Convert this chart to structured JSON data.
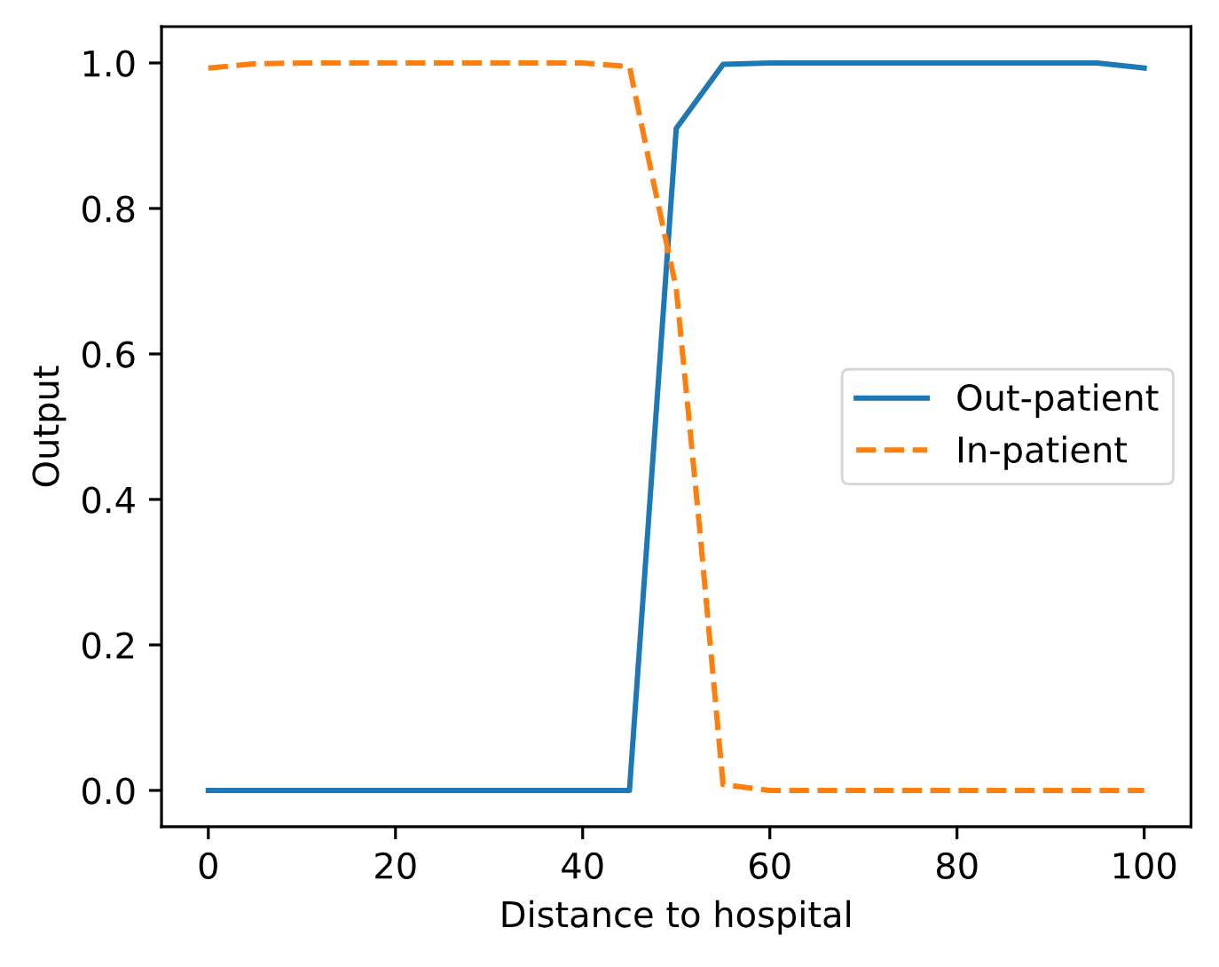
{
  "chart_data": {
    "type": "line",
    "xlabel": "Distance to hospital",
    "ylabel": "Output",
    "series": [
      {
        "name": "Out-patient",
        "color": "#1f77b4",
        "line_style": "solid",
        "x": [
          0,
          5,
          10,
          15,
          20,
          25,
          30,
          35,
          40,
          45,
          50,
          55,
          60,
          65,
          70,
          75,
          80,
          85,
          90,
          95,
          100
        ],
        "values": [
          0,
          0,
          0,
          0,
          0,
          0,
          0,
          0,
          0,
          0,
          0.91,
          0.998,
          1.0,
          1.0,
          1.0,
          1.0,
          1.0,
          1.0,
          1.0,
          1.0,
          0.993
        ]
      },
      {
        "name": "In-patient",
        "color": "#ff7f0e",
        "line_style": "dashed",
        "x": [
          0,
          5,
          10,
          15,
          20,
          25,
          30,
          35,
          40,
          45,
          47.5,
          50,
          52.5,
          55,
          60,
          65,
          70,
          75,
          80,
          85,
          90,
          95,
          100
        ],
        "values": [
          0.993,
          0.999,
          1.0,
          1.0,
          1.0,
          1.0,
          1.0,
          1.0,
          1.0,
          0.995,
          0.84,
          0.69,
          0.36,
          0.008,
          0,
          0,
          0,
          0,
          0,
          0,
          0,
          0,
          0
        ]
      }
    ],
    "xlim": [
      -5,
      105
    ],
    "ylim": [
      -0.05,
      1.05
    ],
    "xticks": [
      0,
      20,
      40,
      60,
      80,
      100
    ],
    "yticks": [
      {
        "value": 0,
        "label": "0.0"
      },
      {
        "value": 0.2,
        "label": "0.2"
      },
      {
        "value": 0.4,
        "label": "0.4"
      },
      {
        "value": 0.6,
        "label": "0.6"
      },
      {
        "value": 0.8,
        "label": "0.8"
      },
      {
        "value": 1.0,
        "label": "1.0"
      }
    ],
    "grid": false,
    "legend": "center right",
    "marker": "none"
  }
}
